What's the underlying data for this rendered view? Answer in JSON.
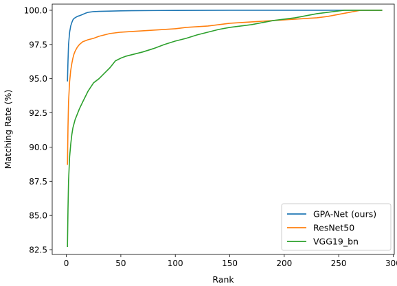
{
  "chart_data": {
    "type": "line",
    "title": "",
    "xlabel": "Rank",
    "ylabel": "Matching Rate (%)",
    "xlim": [
      -13,
      301
    ],
    "ylim": [
      82.15,
      100.45
    ],
    "xticks": [
      0,
      50,
      100,
      150,
      200,
      250,
      300
    ],
    "xtick_labels": [
      "0",
      "50",
      "100",
      "150",
      "200",
      "250",
      "300"
    ],
    "yticks": [
      82.5,
      85.0,
      87.5,
      90.0,
      92.5,
      95.0,
      97.5,
      100.0
    ],
    "ytick_labels": [
      "82.5",
      "85.0",
      "87.5",
      "90.0",
      "92.5",
      "95.0",
      "97.5",
      "100.0"
    ],
    "grid": false,
    "legend_position": "bottom-right",
    "series": [
      {
        "name": "GPA-Net (ours)",
        "color": "#1f77b4",
        "x": [
          1,
          1.5,
          2,
          3,
          4,
          5,
          6,
          7,
          8,
          10,
          12,
          15,
          18,
          20,
          25,
          30,
          40,
          50,
          60,
          80,
          100,
          150,
          200,
          250,
          290
        ],
        "y": [
          94.8,
          96.3,
          97.5,
          98.4,
          98.85,
          99.1,
          99.3,
          99.4,
          99.45,
          99.55,
          99.6,
          99.7,
          99.8,
          99.85,
          99.9,
          99.92,
          99.94,
          99.96,
          99.97,
          99.98,
          99.99,
          100.0,
          100.0,
          100.0,
          100.0
        ]
      },
      {
        "name": "ResNet50",
        "color": "#ff7f0e",
        "x": [
          1,
          1.5,
          2,
          3,
          4,
          5,
          6,
          7,
          8,
          10,
          12,
          15,
          20,
          25,
          30,
          40,
          50,
          60,
          70,
          80,
          90,
          100,
          110,
          120,
          130,
          140,
          150,
          160,
          170,
          180,
          190,
          200,
          210,
          220,
          230,
          240,
          250,
          260,
          270,
          280,
          290
        ],
        "y": [
          88.7,
          91.5,
          93.3,
          94.8,
          95.6,
          96.1,
          96.5,
          96.8,
          97.0,
          97.3,
          97.5,
          97.7,
          97.85,
          97.95,
          98.1,
          98.3,
          98.4,
          98.45,
          98.5,
          98.55,
          98.6,
          98.65,
          98.75,
          98.8,
          98.85,
          98.95,
          99.05,
          99.1,
          99.15,
          99.2,
          99.25,
          99.3,
          99.35,
          99.4,
          99.45,
          99.55,
          99.7,
          99.85,
          100.0,
          100.0,
          100.0
        ]
      },
      {
        "name": "VGG19_bn",
        "color": "#2ca02c",
        "x": [
          1,
          1.5,
          2,
          3,
          4,
          5,
          6,
          8,
          10,
          12,
          15,
          20,
          25,
          30,
          35,
          40,
          45,
          50,
          55,
          60,
          70,
          80,
          90,
          100,
          110,
          120,
          130,
          140,
          150,
          160,
          170,
          180,
          190,
          200,
          210,
          220,
          230,
          240,
          250,
          255,
          260,
          270,
          280,
          290
        ],
        "y": [
          82.7,
          85.5,
          87.5,
          89.3,
          90.2,
          90.9,
          91.4,
          92.0,
          92.4,
          92.8,
          93.3,
          94.1,
          94.7,
          95.0,
          95.4,
          95.8,
          96.3,
          96.5,
          96.65,
          96.75,
          96.95,
          97.2,
          97.5,
          97.75,
          97.95,
          98.2,
          98.4,
          98.6,
          98.75,
          98.85,
          98.95,
          99.1,
          99.25,
          99.35,
          99.45,
          99.6,
          99.75,
          99.85,
          99.95,
          100.0,
          100.0,
          100.0,
          100.0,
          100.0
        ]
      }
    ]
  }
}
